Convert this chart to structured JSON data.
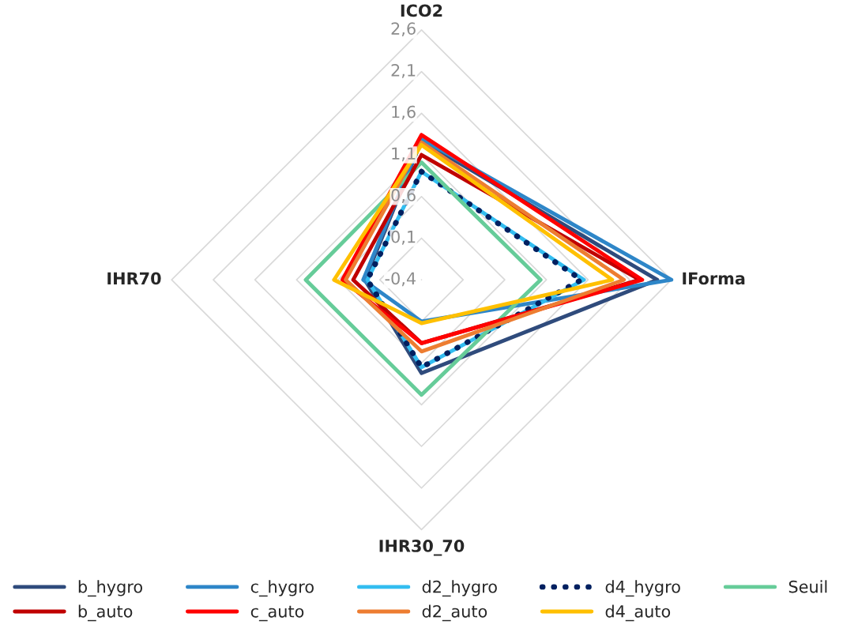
{
  "chart_data": {
    "type": "radar",
    "categories": [
      "ICO2",
      "IForma",
      "IHR30_70",
      "IHR70"
    ],
    "ylim": [
      -0.4,
      2.6
    ],
    "yticks": [
      {
        "value": -0.4,
        "label": "-0,4"
      },
      {
        "value": 0.1,
        "label": "0,1"
      },
      {
        "value": 0.6,
        "label": "0,6"
      },
      {
        "value": 1.1,
        "label": "1,1"
      },
      {
        "value": 1.6,
        "label": "1,6"
      },
      {
        "value": 2.1,
        "label": "2,1"
      },
      {
        "value": 2.6,
        "label": "2,6"
      }
    ],
    "grid": true,
    "legend": "bottom",
    "series": [
      {
        "name": "b_hygro",
        "color": "#2f4b7c",
        "values": [
          1.27,
          2.43,
          0.72,
          0.28
        ]
      },
      {
        "name": "c_hygro",
        "color": "#2e86c8",
        "values": [
          1.29,
          2.6,
          0.1,
          0.3
        ]
      },
      {
        "name": "d2_hygro",
        "color": "#33bdf0",
        "values": [
          0.9,
          1.55,
          0.65,
          0.25
        ]
      },
      {
        "name": "d4_hygro",
        "color": "#002060",
        "line_style": "dotted",
        "values": [
          0.9,
          1.52,
          0.65,
          0.25
        ]
      },
      {
        "name": "Seuil",
        "color": "#66cc99",
        "values": [
          1.01,
          1.03,
          0.98,
          0.99
        ]
      },
      {
        "name": "b_auto",
        "color": "#c00000",
        "values": [
          1.1,
          2.22,
          0.36,
          0.42
        ]
      },
      {
        "name": "c_auto",
        "color": "#ff0000",
        "values": [
          1.34,
          2.25,
          0.36,
          0.55
        ]
      },
      {
        "name": "d2_auto",
        "color": "#ed7d31",
        "values": [
          1.25,
          2.03,
          0.46,
          0.51
        ]
      },
      {
        "name": "d4_auto",
        "color": "#ffc000",
        "values": [
          1.22,
          1.89,
          0.12,
          0.65
        ]
      }
    ]
  }
}
